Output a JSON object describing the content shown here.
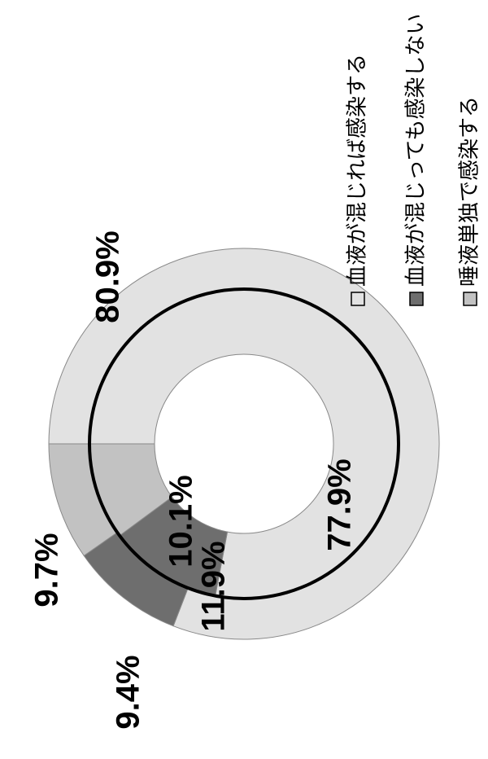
{
  "chart_data": {
    "type": "donut",
    "categories": [
      "血液が混じれば感染する",
      "血液が混じっても感染しない",
      "唾液単独で感染する"
    ],
    "colors": [
      "#e2e2e2",
      "#6e6e6e",
      "#c2c2c2"
    ],
    "series": [
      {
        "values": [
          80.9,
          9.4,
          9.7
        ],
        "value_labels": [
          "80.9%",
          "9.4%",
          "9.7%"
        ]
      },
      {
        "values": [
          77.9,
          11.9,
          10.1
        ],
        "value_labels": [
          "77.9%",
          "11.9%",
          "10.1%"
        ]
      }
    ]
  }
}
